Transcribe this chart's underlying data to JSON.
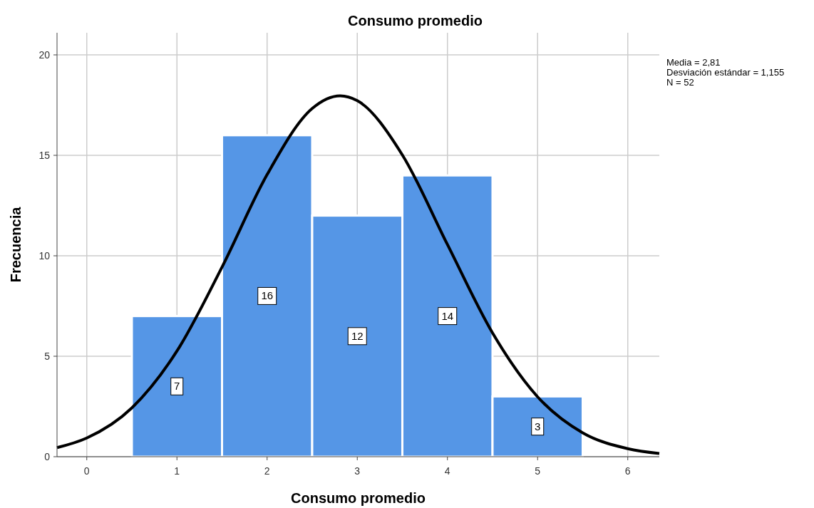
{
  "chart_data": {
    "type": "histogram",
    "title": "Consumo promedio",
    "xlabel": "Consumo promedio",
    "ylabel": "Frecuencia",
    "bins": [
      0.5,
      1.5,
      2.5,
      3.5,
      4.5,
      5.5
    ],
    "values": [
      7,
      16,
      12,
      14,
      3
    ],
    "color": "#5596e6",
    "value_labels": [
      "7",
      "16",
      "12",
      "14",
      "3"
    ],
    "series": [
      {
        "type": "line",
        "color": "#000000",
        "x": [
          -0.33,
          0,
          0.5,
          1,
          1.5,
          2,
          2.5,
          2.81,
          3,
          3.5,
          4,
          4.5,
          5,
          5.5,
          6,
          6.35
        ],
        "values": [
          0.45,
          0.93,
          2.43,
          5.26,
          9.44,
          14.04,
          17.33,
          17.96,
          17.72,
          15.02,
          10.56,
          6.16,
          2.98,
          1.19,
          0.4,
          0.16
        ]
      }
    ],
    "xlim": [
      -0.33,
      6.35
    ],
    "xticks": [
      0,
      1,
      2,
      3,
      4,
      5,
      6
    ],
    "ylim": [
      0,
      21.1
    ],
    "yticks": [
      0,
      5,
      10,
      15,
      20
    ],
    "grid": true,
    "marker": "none",
    "line_style": "solid",
    "annotations": [
      "Media = 2,81",
      "Desviación estándar = 1,155",
      "N = 52"
    ]
  }
}
